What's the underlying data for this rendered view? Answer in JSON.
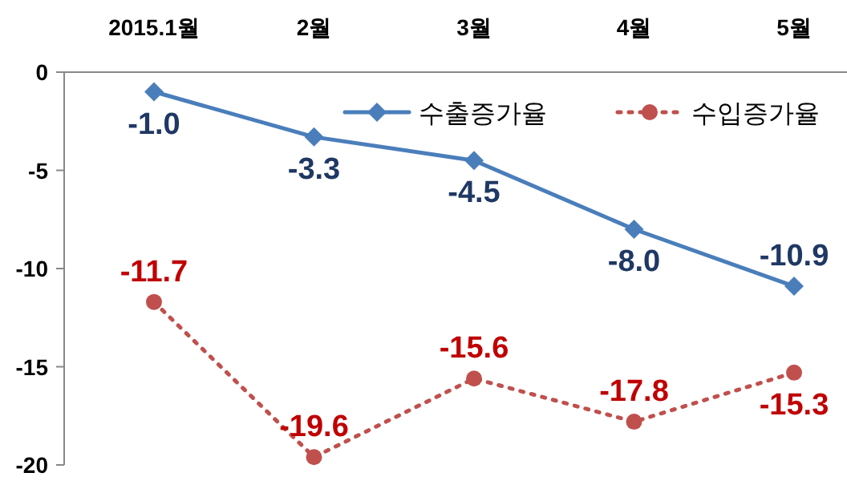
{
  "chart_data": {
    "type": "line",
    "categories": [
      "2015.1월",
      "2월",
      "3월",
      "4월",
      "5월"
    ],
    "ylim": [
      -20,
      0
    ],
    "yticks": [
      0,
      -5,
      -10,
      -15,
      -20
    ],
    "grid": false,
    "legend": "top right",
    "series": [
      {
        "name": "수출증가율",
        "color": "#4a7ebb",
        "values": [
          -1.0,
          -3.3,
          -4.5,
          -8.0,
          -10.9
        ],
        "value_labels": [
          "-1.0",
          "-3.3",
          "-4.5",
          "-8.0",
          "-10.9"
        ],
        "marker": "diamond",
        "line_style": "solid"
      },
      {
        "name": "수입증가율",
        "color": "#c0504d",
        "values": [
          -11.7,
          -19.6,
          -15.6,
          -17.8,
          -15.3
        ],
        "value_labels": [
          "-11.7",
          "-19.6",
          "-15.6",
          "-17.8",
          "-15.3"
        ],
        "marker": "circle",
        "line_style": "dotted"
      }
    ]
  }
}
